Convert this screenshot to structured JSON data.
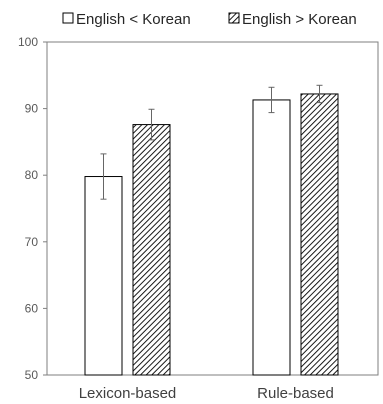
{
  "chart_data": {
    "type": "bar",
    "categories": [
      "Lexicon-based",
      "Rule-based"
    ],
    "series": [
      {
        "name": "English < Korean",
        "values": [
          79.8,
          91.3
        ],
        "error": [
          3.4,
          1.9
        ],
        "pattern": "hollow"
      },
      {
        "name": "English > Korean",
        "values": [
          87.6,
          92.2
        ],
        "error": [
          2.3,
          1.3
        ],
        "pattern": "hatched"
      }
    ],
    "ylim": [
      50,
      100
    ],
    "yticks": [
      50,
      60,
      70,
      80,
      90,
      100
    ],
    "grid": false,
    "legend": "top",
    "title": "",
    "xlabel": "",
    "ylabel": "",
    "colors": {
      "bar_stroke": "#000000",
      "axis": "#7f7f7f",
      "error_bar": "#666666"
    }
  }
}
